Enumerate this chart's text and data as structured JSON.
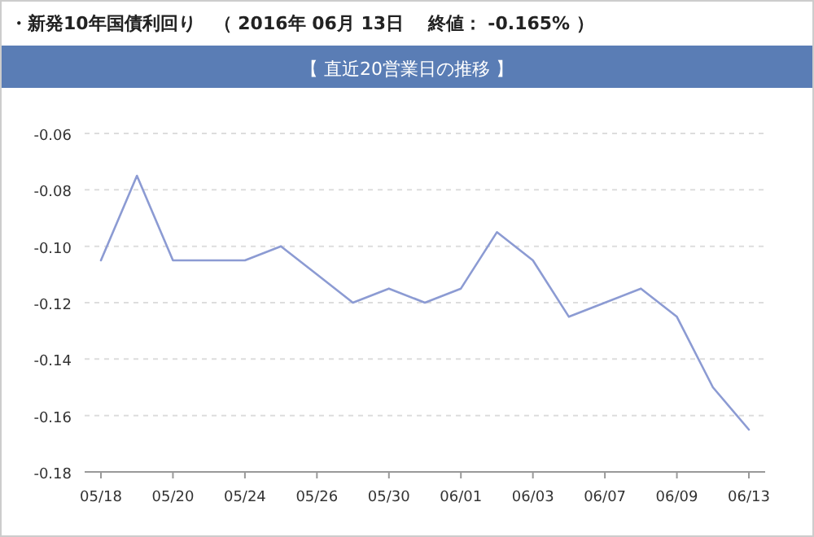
{
  "chart_data": {
    "type": "line",
    "title": "・新発10年国債利回り　（ 2016年 06月 13日　 終値： -0.165% ）",
    "subtitle": "【 直近20営業日の推移 】",
    "categories": [
      "05/18",
      null,
      "05/20",
      null,
      "05/24",
      null,
      "05/26",
      null,
      "05/30",
      null,
      "06/01",
      null,
      "06/03",
      null,
      "06/07",
      null,
      "06/09",
      null,
      "06/13"
    ],
    "series": [
      {
        "color": "#8c9bd3",
        "values": [
          -0.105,
          -0.075,
          -0.105,
          -0.105,
          -0.105,
          -0.1,
          -0.11,
          -0.12,
          -0.115,
          -0.12,
          -0.115,
          -0.095,
          -0.105,
          -0.125,
          -0.12,
          -0.115,
          -0.125,
          -0.15,
          -0.165
        ]
      }
    ],
    "ylim": [
      -0.18,
      -0.06
    ],
    "yticks": [
      {
        "value": -0.18,
        "label": "-0.18"
      },
      {
        "value": -0.16,
        "label": "-0.16"
      },
      {
        "value": -0.14,
        "label": "-0.14"
      },
      {
        "value": -0.12,
        "label": "-0.12"
      },
      {
        "value": -0.1,
        "label": "-0.10"
      },
      {
        "value": -0.08,
        "label": "-0.08"
      },
      {
        "value": -0.06,
        "label": "-0.06"
      }
    ],
    "grid": "y",
    "marker": "none",
    "line_style": "solid"
  }
}
